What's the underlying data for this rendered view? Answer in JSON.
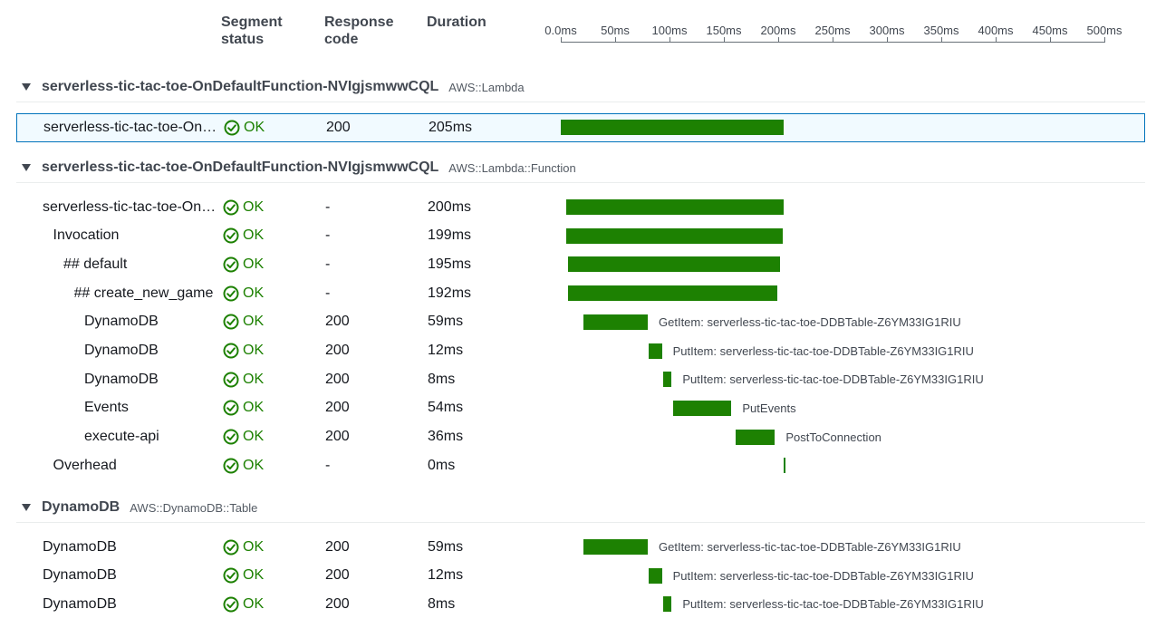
{
  "columns": {
    "segment_status": "Segment\nstatus",
    "response_code": "Response\ncode",
    "duration": "Duration"
  },
  "axis": {
    "unit": "ms",
    "ticks": [
      "0.0ms",
      "50ms",
      "100ms",
      "150ms",
      "200ms",
      "250ms",
      "300ms",
      "350ms",
      "400ms",
      "450ms",
      "500ms"
    ],
    "max": 500
  },
  "colors": {
    "ok": "#1d8102",
    "bar": "#1d8102",
    "selected_border": "#0073bb",
    "selected_bg": "#f1faff"
  },
  "groups": [
    {
      "name": "serverless-tic-tac-toe-OnDefaultFunction-NVIgjsmwwCQL",
      "type": "AWS::Lambda",
      "rows": [
        {
          "name": "serverless-tic-tac-toe-On…",
          "indent": 0,
          "status": "OK",
          "code": "200",
          "duration": "205ms",
          "start_ms": 0,
          "duration_ms": 205,
          "label": "",
          "selected": true
        }
      ]
    },
    {
      "name": "serverless-tic-tac-toe-OnDefaultFunction-NVIgjsmwwCQL",
      "type": "AWS::Lambda::Function",
      "rows": [
        {
          "name": "serverless-tic-tac-toe-On…",
          "indent": 0,
          "status": "OK",
          "code": "-",
          "duration": "200ms",
          "start_ms": 5,
          "duration_ms": 200,
          "label": ""
        },
        {
          "name": "Invocation",
          "indent": 1,
          "status": "OK",
          "code": "-",
          "duration": "199ms",
          "start_ms": 5,
          "duration_ms": 199,
          "label": ""
        },
        {
          "name": "## default",
          "indent": 2,
          "status": "OK",
          "code": "-",
          "duration": "195ms",
          "start_ms": 7,
          "duration_ms": 195,
          "label": ""
        },
        {
          "name": "## create_new_game",
          "indent": 3,
          "status": "OK",
          "code": "-",
          "duration": "192ms",
          "start_ms": 7,
          "duration_ms": 192,
          "label": ""
        },
        {
          "name": "DynamoDB",
          "indent": 4,
          "status": "OK",
          "code": "200",
          "duration": "59ms",
          "start_ms": 21,
          "duration_ms": 59,
          "label": "GetItem: serverless-tic-tac-toe-DDBTable-Z6YM33IG1RIU"
        },
        {
          "name": "DynamoDB",
          "indent": 4,
          "status": "OK",
          "code": "200",
          "duration": "12ms",
          "start_ms": 81,
          "duration_ms": 12,
          "label": "PutItem: serverless-tic-tac-toe-DDBTable-Z6YM33IG1RIU"
        },
        {
          "name": "DynamoDB",
          "indent": 4,
          "status": "OK",
          "code": "200",
          "duration": "8ms",
          "start_ms": 94,
          "duration_ms": 8,
          "label": "PutItem: serverless-tic-tac-toe-DDBTable-Z6YM33IG1RIU"
        },
        {
          "name": "Events",
          "indent": 4,
          "status": "OK",
          "code": "200",
          "duration": "54ms",
          "start_ms": 103,
          "duration_ms": 54,
          "label": "PutEvents"
        },
        {
          "name": "execute-api",
          "indent": 4,
          "status": "OK",
          "code": "200",
          "duration": "36ms",
          "start_ms": 161,
          "duration_ms": 36,
          "label": "PostToConnection"
        },
        {
          "name": "Overhead",
          "indent": 1,
          "status": "OK",
          "code": "-",
          "duration": "0ms",
          "start_ms": 205,
          "duration_ms": 0,
          "label": ""
        }
      ]
    },
    {
      "name": "DynamoDB",
      "type": "AWS::DynamoDB::Table",
      "rows": [
        {
          "name": "DynamoDB",
          "indent": 0,
          "status": "OK",
          "code": "200",
          "duration": "59ms",
          "start_ms": 21,
          "duration_ms": 59,
          "label": "GetItem: serverless-tic-tac-toe-DDBTable-Z6YM33IG1RIU"
        },
        {
          "name": "DynamoDB",
          "indent": 0,
          "status": "OK",
          "code": "200",
          "duration": "12ms",
          "start_ms": 81,
          "duration_ms": 12,
          "label": "PutItem: serverless-tic-tac-toe-DDBTable-Z6YM33IG1RIU"
        },
        {
          "name": "DynamoDB",
          "indent": 0,
          "status": "OK",
          "code": "200",
          "duration": "8ms",
          "start_ms": 94,
          "duration_ms": 8,
          "label": "PutItem: serverless-tic-tac-toe-DDBTable-Z6YM33IG1RIU"
        }
      ]
    }
  ]
}
